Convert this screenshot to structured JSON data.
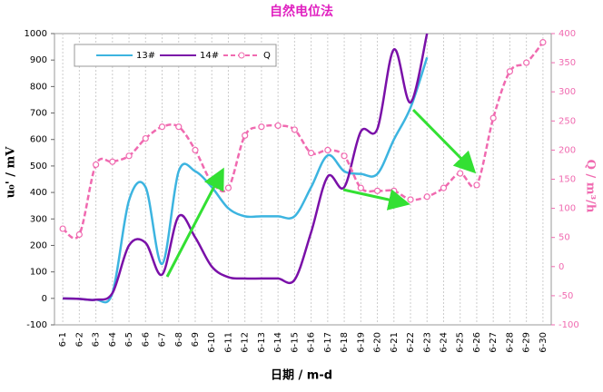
{
  "chart_data": {
    "type": "line",
    "title": "自然电位法",
    "categories": [
      "6-1",
      "6-2",
      "6-3",
      "6-4",
      "6-5",
      "6-6",
      "6-7",
      "6-8",
      "6-9",
      "6-10",
      "6-11",
      "6-12",
      "6-13",
      "6-14",
      "6-15",
      "6-16",
      "6-17",
      "6-18",
      "6-19",
      "6-20",
      "6-21",
      "6-22",
      "6-23",
      "6-24",
      "6-25",
      "6-26",
      "6-27",
      "6-28",
      "6-29",
      "6-30"
    ],
    "series": [
      {
        "name": "13#",
        "color": "#3cb4e0",
        "values": [
          0,
          -2,
          -5,
          20,
          370,
          420,
          130,
          480,
          480,
          420,
          340,
          310,
          310,
          310,
          310,
          420,
          540,
          480,
          470,
          470,
          600,
          720,
          910,
          null,
          null,
          null,
          null,
          null,
          null,
          null
        ]
      },
      {
        "name": "14#",
        "color": "#7a10a8",
        "values": [
          0,
          -2,
          -5,
          20,
          200,
          210,
          90,
          310,
          230,
          120,
          80,
          75,
          75,
          75,
          70,
          250,
          460,
          420,
          630,
          640,
          940,
          740,
          1000,
          null,
          null,
          null,
          null,
          null,
          null,
          null
        ]
      },
      {
        "name": "Q",
        "color": "#f06ab0",
        "axis": "y2",
        "values": [
          65,
          55,
          175,
          180,
          190,
          220,
          240,
          240,
          200,
          145,
          135,
          225,
          240,
          242,
          235,
          195,
          200,
          190,
          135,
          130,
          130,
          115,
          120,
          135,
          160,
          140,
          255,
          335,
          350,
          385
        ]
      }
    ],
    "ylim": [
      -100,
      1000
    ],
    "yticks": [
      -100,
      0,
      100,
      200,
      300,
      400,
      500,
      600,
      700,
      800,
      900,
      1000
    ],
    "y2lim": [
      -100,
      400
    ],
    "y2ticks": [
      -100,
      -50,
      0,
      50,
      100,
      150,
      200,
      250,
      300,
      350,
      400
    ],
    "ylabel": "u₀' / mV",
    "y2label": "Q / m³/h",
    "xlabel": "日期 / m-d",
    "grid": true
  }
}
